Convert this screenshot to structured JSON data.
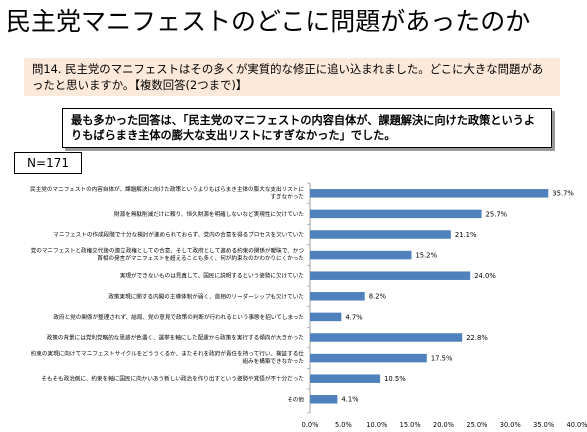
{
  "slide": {
    "title": "民主党マニフェストのどこに問題があったのか",
    "question": "問14. 民主党のマニフェストはその多くが実質的な修正に追い込まれました。どこに大きな問題があったと思いますか。【複数回答(2つまで)】",
    "highlight": "最も多かった回答は、「民主党のマニフェストの内容自体が、課題解決に向けた政策というよりもばらまき主体の膨大な支出リストにすぎなかった」でした。",
    "sample_size": "N=171"
  },
  "chart_data": {
    "type": "bar",
    "orientation": "horizontal",
    "categories": [
      [
        "民主党のマニフェストの内容自体が、課題解決に向けた政策というよりもばらまき主体の膨大な支出リストに",
        "すぎなかった"
      ],
      [
        "財源を無駄削減だけに頼り、恒久財源を明確しないなど実現性に欠けていた"
      ],
      [
        "マニフェストの作成段階で十分な検討が進められておらず、党内の合意を得るプロセスを欠いていた"
      ],
      [
        "党のマニフェストと政権交代後の連立政権としての合意、そして政府として進める約束の関係が曖昧で、かつ",
        "首相の発言がマニフェストを超えることも多く、何が約束なのかわかりにくかった"
      ],
      [
        "実現ができないものは見直して、国民に説明するという姿勢に欠けていた"
      ],
      [
        "政策実現に関する内閣の主導体制が弱く、首相のリーダーシップも欠けていた"
      ],
      [
        "政府と党の関係が整理されず、結局、党の意見で政策の判断が行われるという事態を招いてしまった"
      ],
      [
        "政策の背景には党利党略的な思惑が色濃く、選挙を軸にした配慮から政策を実行する傾向が大きかった"
      ],
      [
        "約束の実現に向けてマニフェストサイクルをどううくるか、またそれを政府が責任を持って行い、検証する仕",
        "組みを構築できなかった"
      ],
      [
        "そもそも政治側に、約束を軸に国民に向かいあう新しい政治を作り出すという姿勢や覚悟が不十分だった"
      ],
      [
        "その他"
      ]
    ],
    "values": [
      35.7,
      25.7,
      21.1,
      15.2,
      24.0,
      8.2,
      4.7,
      22.8,
      17.5,
      10.5,
      4.1
    ],
    "value_labels": [
      "35.7%",
      "25.7%",
      "21.1%",
      "15.2%",
      "24.0%",
      "8.2%",
      "4.7%",
      "22.8%",
      "17.5%",
      "10.5%",
      "4.1%"
    ],
    "xlim": [
      0,
      40
    ],
    "ticks": [
      0,
      5,
      10,
      15,
      20,
      25,
      30,
      35,
      40
    ],
    "tick_labels": [
      "0.0%",
      "5.0%",
      "10.0%",
      "15.0%",
      "20.0%",
      "25.0%",
      "30.0%",
      "35.0%",
      "40.0%"
    ],
    "bar_color": "#4f81bd",
    "grid": false
  }
}
